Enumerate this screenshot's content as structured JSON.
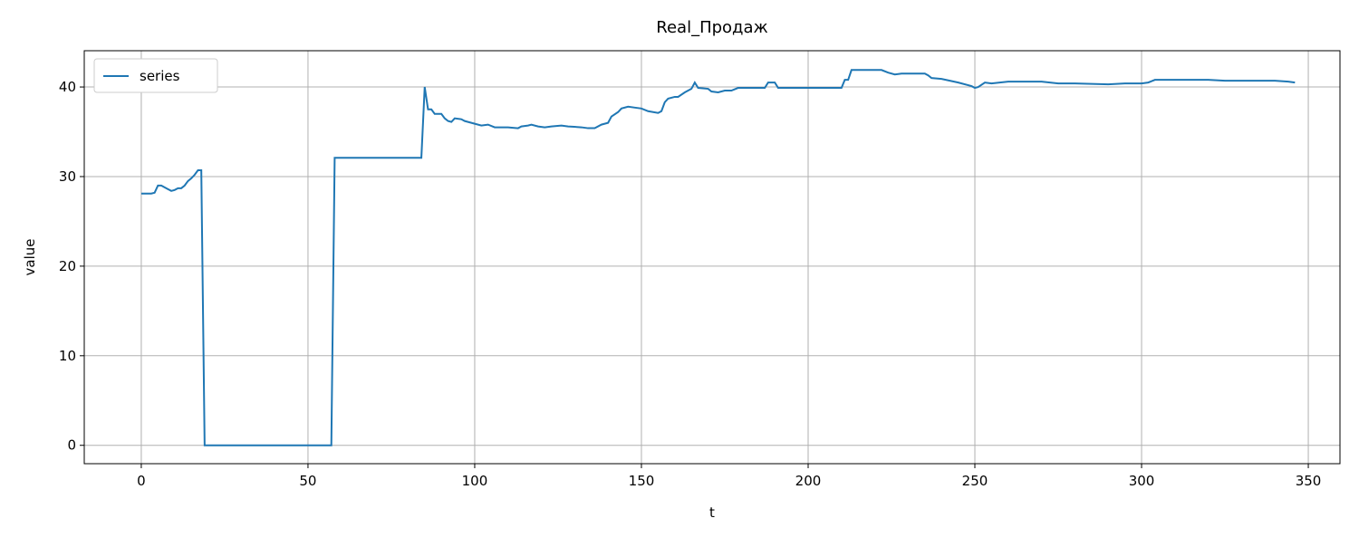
{
  "chart_data": {
    "type": "line",
    "title": "Real_Продаж",
    "x_label": "t",
    "y_label": "value",
    "x": [
      0,
      3,
      4,
      5,
      6,
      8,
      9,
      10,
      11,
      12,
      13,
      14,
      15,
      16,
      17,
      18,
      19,
      57,
      58,
      84,
      85,
      86,
      87,
      88,
      90,
      91,
      92,
      93,
      94,
      96,
      97,
      100,
      102,
      104,
      106,
      108,
      110,
      113,
      114,
      116,
      117,
      119,
      121,
      123,
      126,
      128,
      132,
      134,
      136,
      138,
      140,
      141,
      143,
      144,
      146,
      148,
      150,
      152,
      155,
      156,
      157,
      158,
      160,
      161,
      163,
      165,
      166,
      167,
      170,
      171,
      173,
      175,
      177,
      179,
      187,
      188,
      190,
      191,
      210,
      211,
      212,
      213,
      222,
      224,
      226,
      228,
      235,
      236,
      237,
      240,
      245,
      249,
      250,
      251,
      253,
      255,
      260,
      270,
      275,
      280,
      290,
      295,
      300,
      302,
      304,
      310,
      315,
      320,
      325,
      330,
      335,
      340,
      344,
      346
    ],
    "series": [
      {
        "name": "series",
        "color": "#1f77b4",
        "values": [
          28.1,
          28.1,
          28.2,
          29.0,
          29.0,
          28.6,
          28.4,
          28.5,
          28.7,
          28.7,
          29.0,
          29.5,
          29.8,
          30.2,
          30.7,
          30.7,
          0,
          0,
          32.1,
          32.1,
          40.0,
          37.5,
          37.5,
          37.0,
          37.0,
          36.5,
          36.2,
          36.1,
          36.5,
          36.4,
          36.2,
          35.9,
          35.7,
          35.8,
          35.5,
          35.5,
          35.5,
          35.4,
          35.6,
          35.7,
          35.8,
          35.6,
          35.5,
          35.6,
          35.7,
          35.6,
          35.5,
          35.4,
          35.4,
          35.8,
          36.0,
          36.7,
          37.2,
          37.6,
          37.8,
          37.7,
          37.6,
          37.3,
          37.1,
          37.3,
          38.3,
          38.7,
          38.9,
          38.9,
          39.4,
          39.8,
          40.5,
          39.9,
          39.8,
          39.5,
          39.4,
          39.6,
          39.6,
          39.9,
          39.9,
          40.5,
          40.5,
          39.9,
          39.9,
          40.8,
          40.8,
          41.9,
          41.9,
          41.6,
          41.4,
          41.5,
          41.5,
          41.3,
          41.0,
          40.9,
          40.5,
          40.1,
          39.9,
          40.0,
          40.5,
          40.4,
          40.6,
          40.6,
          40.4,
          40.4,
          40.3,
          40.4,
          40.4,
          40.5,
          40.8,
          40.8,
          40.8,
          40.8,
          40.7,
          40.7,
          40.7,
          40.7,
          40.6,
          40.5
        ]
      }
    ],
    "xlim": [
      -17.1,
      359.5
    ],
    "ylim": [
      -2.05,
      44.05
    ],
    "xticks": [
      0,
      50,
      100,
      150,
      200,
      250,
      300,
      350
    ],
    "yticks": [
      0,
      10,
      20,
      30,
      40
    ],
    "grid": true,
    "legend": "upper left"
  }
}
